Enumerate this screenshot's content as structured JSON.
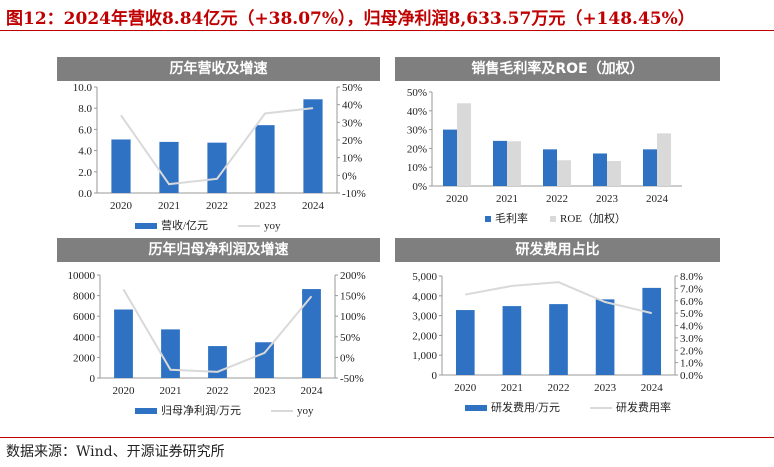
{
  "title": "图12：2024年营收8.84亿元（+38.07%），归母净利润8,633.57万元（+148.45%）",
  "source": "数据来源：Wind、开源证券研究所",
  "colors": {
    "bar": "#2f72c4",
    "line": "#d9d9d9",
    "bar2": "#d9d9d9",
    "header": "#7f7f7f"
  },
  "chart_data": [
    {
      "type": "bar+line",
      "title": "历年营收及增速",
      "categories": [
        "2020",
        "2021",
        "2022",
        "2023",
        "2024"
      ],
      "left_axis": {
        "range": [
          0,
          10
        ],
        "ticks": [
          "0.0",
          "2.0",
          "4.0",
          "6.0",
          "8.0",
          "10.0"
        ]
      },
      "right_axis": {
        "range": [
          -10,
          50
        ],
        "ticks": [
          "-10%",
          "0%",
          "10%",
          "20%",
          "30%",
          "40%",
          "50%"
        ]
      },
      "series": [
        {
          "name": "营收/亿元",
          "kind": "bar",
          "axis": "left",
          "values": [
            5.05,
            4.82,
            4.75,
            6.4,
            8.84
          ]
        },
        {
          "name": "yoy",
          "kind": "line",
          "axis": "right",
          "values": [
            34,
            -5,
            -2,
            35,
            38.07
          ]
        }
      ],
      "legend": "bottom"
    },
    {
      "type": "bar",
      "title": "销售毛利率及ROE（加权）",
      "categories": [
        "2020",
        "2021",
        "2022",
        "2023",
        "2024"
      ],
      "left_axis": {
        "range": [
          0,
          50
        ],
        "ticks": [
          "0%",
          "10%",
          "20%",
          "30%",
          "40%",
          "50%"
        ]
      },
      "series": [
        {
          "name": "毛利率",
          "kind": "bar",
          "axis": "left",
          "values": [
            30,
            24,
            19.5,
            17.3,
            19.5
          ]
        },
        {
          "name": "ROE（加权）",
          "kind": "bar",
          "axis": "left",
          "values": [
            44,
            23.8,
            13.7,
            13.3,
            28
          ]
        }
      ],
      "legend": "bottom"
    },
    {
      "type": "bar+line",
      "title": "历年归母净利润及增速",
      "categories": [
        "2020",
        "2021",
        "2022",
        "2023",
        "2024"
      ],
      "left_axis": {
        "range": [
          0,
          10000
        ],
        "ticks": [
          "0",
          "2000",
          "4000",
          "6000",
          "8000",
          "10000"
        ]
      },
      "right_axis": {
        "range": [
          -50,
          200
        ],
        "ticks": [
          "-50%",
          "0%",
          "50%",
          "100%",
          "150%",
          "200%"
        ]
      },
      "series": [
        {
          "name": "归母净利润/万元",
          "kind": "bar",
          "axis": "left",
          "values": [
            6650,
            4720,
            3100,
            3470,
            8633.57
          ]
        },
        {
          "name": "yoy",
          "kind": "line",
          "axis": "right",
          "values": [
            165,
            -30,
            -35,
            11,
            148.45
          ]
        }
      ],
      "legend": "bottom"
    },
    {
      "type": "bar+line",
      "title": "研发费用占比",
      "categories": [
        "2020",
        "2021",
        "2022",
        "2023",
        "2024"
      ],
      "left_axis": {
        "range": [
          0,
          5000
        ],
        "ticks": [
          "0",
          "1,000",
          "2,000",
          "3,000",
          "4,000",
          "5,000"
        ]
      },
      "right_axis": {
        "range": [
          0,
          8
        ],
        "ticks": [
          "0.0%",
          "1.0%",
          "2.0%",
          "3.0%",
          "4.0%",
          "5.0%",
          "6.0%",
          "7.0%",
          "8.0%"
        ]
      },
      "series": [
        {
          "name": "研发费用/万元",
          "kind": "bar",
          "axis": "left",
          "values": [
            3280,
            3480,
            3580,
            3820,
            4400
          ]
        },
        {
          "name": "研发费用率",
          "kind": "line",
          "axis": "right",
          "values": [
            6.5,
            7.2,
            7.5,
            5.9,
            5.0
          ]
        }
      ],
      "legend": "bottom"
    }
  ]
}
